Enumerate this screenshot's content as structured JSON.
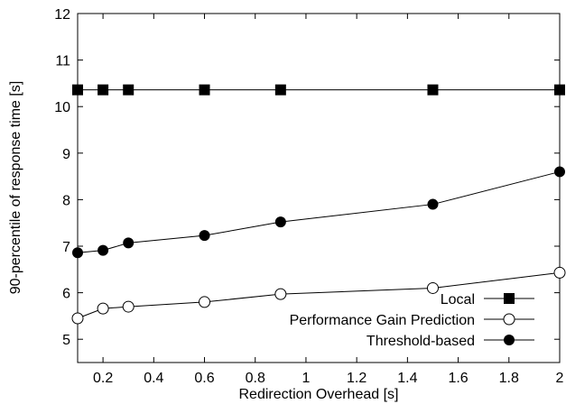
{
  "chart_data": {
    "type": "line",
    "title": "",
    "xlabel": "Redirection Overhead [s]",
    "ylabel": "90-percentile of response time [s]",
    "xlim": [
      0.1,
      2.0
    ],
    "ylim": [
      4.5,
      12
    ],
    "xticks": [
      "0.2",
      "0.4",
      "0.6",
      "0.8",
      "1",
      "1.2",
      "1.4",
      "1.6",
      "1.8",
      "2"
    ],
    "xtick_values": [
      0.2,
      0.4,
      0.6,
      0.8,
      1.0,
      1.2,
      1.4,
      1.6,
      1.8,
      2.0
    ],
    "yticks": [
      "5",
      "6",
      "7",
      "8",
      "9",
      "10",
      "11",
      "12"
    ],
    "ytick_values": [
      5,
      6,
      7,
      8,
      9,
      10,
      11,
      12
    ],
    "grid": false,
    "legend_position": "bottom-right",
    "series": [
      {
        "name": "Local",
        "marker": "filled-square",
        "color": "#000000",
        "x": [
          0.1,
          0.2,
          0.3,
          0.6,
          0.9,
          1.5,
          2.0
        ],
        "y": [
          10.36,
          10.36,
          10.36,
          10.36,
          10.36,
          10.36,
          10.36
        ]
      },
      {
        "name": "Performance Gain Prediction",
        "marker": "open-circle",
        "color": "#000000",
        "x": [
          0.1,
          0.2,
          0.3,
          0.6,
          0.9,
          1.5,
          2.0
        ],
        "y": [
          5.45,
          5.66,
          5.7,
          5.8,
          5.97,
          6.1,
          6.43
        ]
      },
      {
        "name": "Threshold-based",
        "marker": "filled-circle",
        "color": "#000000",
        "x": [
          0.1,
          0.2,
          0.3,
          0.6,
          0.9,
          1.5,
          2.0
        ],
        "y": [
          6.86,
          6.91,
          7.07,
          7.23,
          7.52,
          7.9,
          8.6
        ]
      }
    ]
  }
}
